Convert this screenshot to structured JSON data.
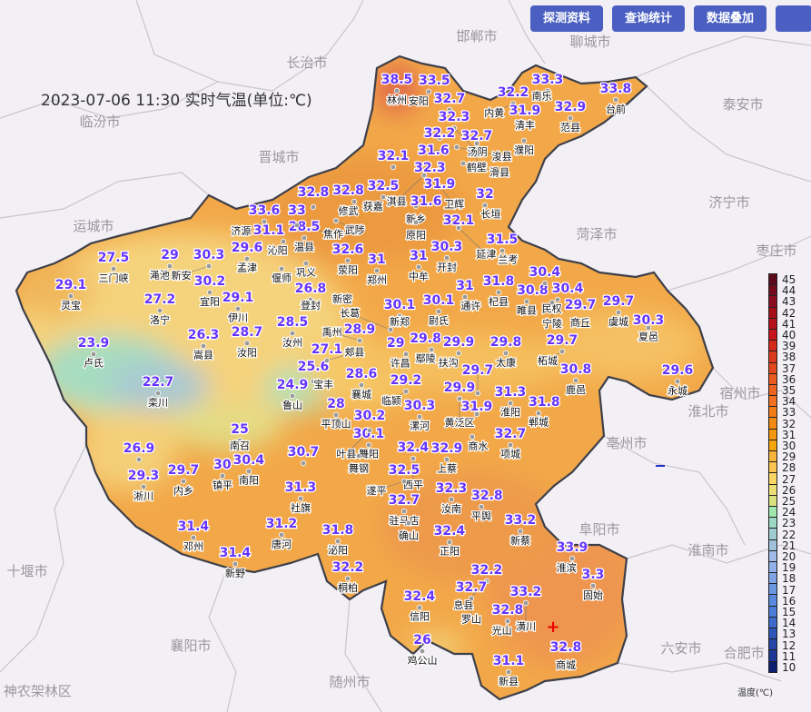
{
  "title": "2023-07-06 11:30 实时气温(单位:℃)",
  "toolbar": {
    "buttons": [
      "探测资料",
      "查询统计",
      "数据叠加",
      ""
    ]
  },
  "legend": {
    "unit": "温度(℃)",
    "ticks": [
      45,
      44,
      43,
      42,
      41,
      40,
      39,
      38,
      37,
      36,
      35,
      34,
      33,
      32,
      31,
      30,
      29,
      28,
      27,
      26,
      25,
      24,
      23,
      22,
      21,
      20,
      19,
      18,
      17,
      16,
      15,
      14,
      13,
      12,
      11,
      10
    ],
    "colors": [
      "#5c0a1a",
      "#720c1c",
      "#8a0d1f",
      "#a50f15",
      "#b8101a",
      "#c8141a",
      "#d42a1a",
      "#dc3a1c",
      "#e2481e",
      "#e85a20",
      "#ec6422",
      "#ef7020",
      "#f07c1a",
      "#f28a14",
      "#f3980e",
      "#f5a50c",
      "#f7b43a",
      "#f9c550",
      "#f8d565",
      "#ecdc74",
      "#d9e07e",
      "#9ee8b0",
      "#9dd8c4",
      "#a0ccd0",
      "#9fc1dc",
      "#9fb9e8",
      "#8fb0e8",
      "#7ea4e4",
      "#6a98e0",
      "#5a8ade",
      "#4a7ed8",
      "#3d6ccc",
      "#2e58b8",
      "#2548a6",
      "#1a3894",
      "#0f1f70"
    ]
  },
  "colors": {
    "value_text": "#6633ff",
    "button": "#4a5fc1",
    "province_fill": "#f2a848",
    "background": "#f2eff5"
  },
  "background_cities": [
    "邯郸市",
    "聊城市",
    "长治市",
    "临汾市",
    "晋城市",
    "泰安市",
    "运城市",
    "济宁市",
    "菏泽市",
    "枣庄市",
    "宿州市",
    "淮北市",
    "亳州市",
    "阜阳市",
    "淮南市",
    "十堰市",
    "襄阳市",
    "随州市",
    "六安市",
    "合肥市",
    "神农架林区"
  ],
  "stations": [
    {
      "name": "林州",
      "value": "38.5"
    },
    {
      "name": "安阳",
      "value": "33.5"
    },
    {
      "name": "",
      "value": "32.7"
    },
    {
      "name": "汤阴",
      "value": "32.3"
    },
    {
      "name": "",
      "value": "32.2"
    },
    {
      "name": "鹤壁",
      "value": "32.7"
    },
    {
      "name": "浚县",
      "value": "31.6"
    },
    {
      "name": "",
      "value": "32.1"
    },
    {
      "name": "淇县",
      "value": "32.3"
    },
    {
      "name": "长垣",
      "value": "32"
    },
    {
      "name": "内黄",
      "value": "32.2"
    },
    {
      "name": "南乐",
      "value": "33.3"
    },
    {
      "name": "清丰",
      "value": "31.9"
    },
    {
      "name": "范县",
      "value": "32.9"
    },
    {
      "name": "台前",
      "value": "33.8"
    },
    {
      "name": "获嘉",
      "value": "32.5"
    },
    {
      "name": "卫辉",
      "value": "31.9"
    },
    {
      "name": "新乡",
      "value": "31.6"
    },
    {
      "name": "延津",
      "value": "32.1"
    },
    {
      "name": "开封",
      "value": "30.3"
    },
    {
      "name": "中牟",
      "value": "31"
    },
    {
      "name": "兰考",
      "value": "31.5"
    },
    {
      "name": "通许",
      "value": "31"
    },
    {
      "name": "杞县",
      "value": "31.8"
    },
    {
      "name": "尉氏",
      "value": "30.1"
    },
    {
      "name": "睢县",
      "value": "30.8"
    },
    {
      "name": "民权",
      "value": "30.4"
    },
    {
      "name": "",
      "value": "30.4"
    },
    {
      "name": "商丘",
      "value": "29.7"
    },
    {
      "name": "虞城",
      "value": "29.7"
    },
    {
      "name": "夏邑",
      "value": "30.3"
    },
    {
      "name": "永城",
      "value": "29.6"
    },
    {
      "name": "柘城",
      "value": "29.7"
    },
    {
      "name": "鹿邑",
      "value": "30.8"
    },
    {
      "name": "太康",
      "value": "29.8"
    },
    {
      "name": "扶沟",
      "value": "29.9"
    },
    {
      "name": "鄢陵",
      "value": "29.8"
    },
    {
      "name": "许昌",
      "value": "29"
    },
    {
      "name": "临颍",
      "value": "29.2"
    },
    {
      "name": "黄泛区",
      "value": "29.9"
    },
    {
      "name": "",
      "value": "29.7"
    },
    {
      "name": "淮阳",
      "value": "31.3"
    },
    {
      "name": "郸城",
      "value": "31.8"
    },
    {
      "name": "",
      "value": "31.9"
    },
    {
      "name": "项城",
      "value": "32.7"
    },
    {
      "name": "上蔡",
      "value": "32.9"
    },
    {
      "name": "漯河",
      "value": "30.3"
    },
    {
      "name": "西平",
      "value": "32.4"
    },
    {
      "name": "遂平",
      "value": "32.5"
    },
    {
      "name": "驻马店",
      "value": "32.7"
    },
    {
      "name": "汝南",
      "value": "32.3"
    },
    {
      "name": "平舆",
      "value": "32.8"
    },
    {
      "name": "正阳",
      "value": "32.4"
    },
    {
      "name": "新蔡",
      "value": "33.2"
    },
    {
      "name": "淮滨",
      "value": "33.9"
    },
    {
      "name": "固始",
      "value": "3.3"
    },
    {
      "name": "息县",
      "value": "32.2"
    },
    {
      "name": "罗山",
      "value": "32.7"
    },
    {
      "name": "潢川",
      "value": "33.2"
    },
    {
      "name": "光山",
      "value": "32.8"
    },
    {
      "name": "信阳",
      "value": "32.4"
    },
    {
      "name": "鸡公山",
      "value": "26"
    },
    {
      "name": "新县",
      "value": "31.1"
    },
    {
      "name": "商城",
      "value": "32.8"
    },
    {
      "name": "桐柏",
      "value": "32.2"
    },
    {
      "name": "泌阳",
      "value": "31.8"
    },
    {
      "name": "唐河",
      "value": "31.2"
    },
    {
      "name": "新野",
      "value": "31.4"
    },
    {
      "name": "邓州",
      "value": "31.4"
    },
    {
      "name": "社旗",
      "value": "31.3"
    },
    {
      "name": "",
      "value": "30.7"
    },
    {
      "name": "南阳",
      "value": "30.4"
    },
    {
      "name": "镇平",
      "value": "30"
    },
    {
      "name": "内乡",
      "value": "29.7"
    },
    {
      "name": "淅川",
      "value": "29.3"
    },
    {
      "name": "",
      "value": "26.9"
    },
    {
      "name": "南召",
      "value": "25"
    },
    {
      "name": "舞阳",
      "value": "30.1"
    },
    {
      "name": "叶县",
      "value": "30.2"
    },
    {
      "name": "襄城",
      "value": "28.6"
    },
    {
      "name": "平顶山",
      "value": "28"
    },
    {
      "name": "鲁山",
      "value": "24.9"
    },
    {
      "name": "宝丰",
      "value": "25.6"
    },
    {
      "name": "郏县",
      "value": "27.1"
    },
    {
      "name": "汝州",
      "value": "28.5"
    },
    {
      "name": "禹州",
      "value": "28.9"
    },
    {
      "name": "新郑",
      "value": "30.1"
    },
    {
      "name": "郑州",
      "value": "31"
    },
    {
      "name": "登封",
      "value": "26.8"
    },
    {
      "name": "荥阳",
      "value": "32.6"
    },
    {
      "name": "孟津",
      "value": "29.6"
    },
    {
      "name": "温县",
      "value": "28.5"
    },
    {
      "name": "新安",
      "value": "30.3"
    },
    {
      "name": "宜阳",
      "value": "30.2"
    },
    {
      "name": "渑池",
      "value": "29"
    },
    {
      "name": "三门峡",
      "value": "27.5"
    },
    {
      "name": "灵宝",
      "value": "29.1"
    },
    {
      "name": "洛宁",
      "value": "27.2"
    },
    {
      "name": "伊川",
      "value": "29.1"
    },
    {
      "name": "嵩县",
      "value": "26.3"
    },
    {
      "name": "汝阳",
      "value": "28.7"
    },
    {
      "name": "卢氏",
      "value": "23.9"
    },
    {
      "name": "栾川",
      "value": "22.7"
    },
    {
      "name": "济源",
      "value": "33.6"
    },
    {
      "name": "沁阳",
      "value": "31.1"
    },
    {
      "name": "焦作",
      "value": "33"
    },
    {
      "name": "修武",
      "value": "32.8"
    },
    {
      "name": "",
      "value": "32.8"
    },
    {
      "name": "濮阳",
      "value": ""
    },
    {
      "name": "滑县",
      "value": ""
    },
    {
      "name": "原阳",
      "value": ""
    },
    {
      "name": "偃师",
      "value": ""
    },
    {
      "name": "巩义",
      "value": ""
    },
    {
      "name": "宁陵",
      "value": ""
    },
    {
      "name": "长葛",
      "value": ""
    },
    {
      "name": "新密",
      "value": ""
    },
    {
      "name": "确山",
      "value": ""
    },
    {
      "name": "舞钢",
      "value": ""
    },
    {
      "name": "武陟",
      "value": ""
    },
    {
      "name": "商水",
      "value": ""
    }
  ]
}
